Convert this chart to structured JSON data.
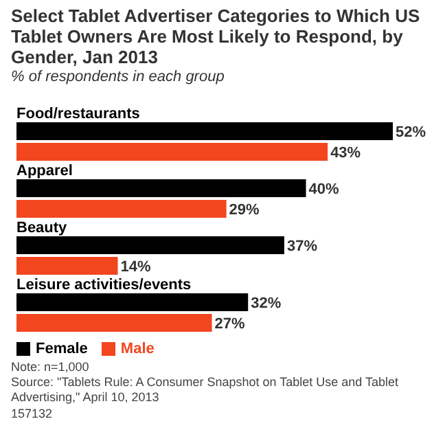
{
  "chart_data": {
    "type": "bar",
    "orientation": "horizontal",
    "title": "Select Tablet Advertiser Categories to Which US Tablet Owners Are Most Likely to Respond, by Gender, Jan 2013",
    "subtitle": "% of respondents in each group",
    "categories": [
      "Food/restaurants",
      "Apparel",
      "Beauty",
      "Leisure activities/events"
    ],
    "series": [
      {
        "name": "Female",
        "color": "#000000",
        "values": [
          52,
          40,
          37,
          32
        ],
        "value_labels": [
          "52%",
          "40%",
          "37%",
          "32%"
        ]
      },
      {
        "name": "Male",
        "color": "#f2461f",
        "values": [
          43,
          29,
          14,
          27
        ],
        "value_labels": [
          "43%",
          "29%",
          "14%",
          "27%"
        ]
      }
    ],
    "legend": "bottom left",
    "annotations": [
      "Note: n=1,000",
      "Source: \"Tablets Rule: A Consumer Snapshot on Tablet Use and Tablet Advertising,\" April 10, 2013",
      "157132"
    ]
  }
}
